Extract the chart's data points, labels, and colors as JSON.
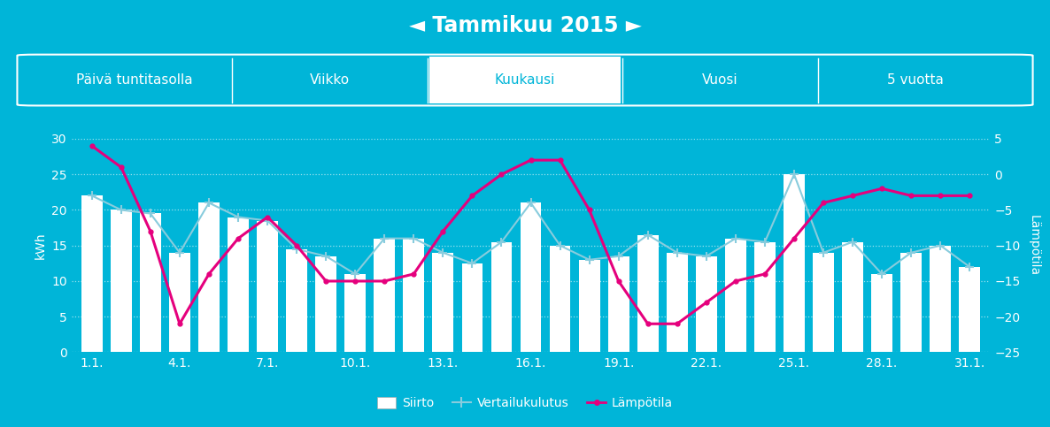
{
  "title": "◄ Tammikuu 2015 ►",
  "background_color": "#00B5D8",
  "bar_color": "white",
  "tabs": [
    "Päivä tuntitasolla",
    "Viikko",
    "Kuukausi",
    "Vuosi",
    "5 vuotta"
  ],
  "active_tab": "Kuukausi",
  "x_labels": [
    "1.1.",
    "4.1.",
    "7.1.",
    "10.1.",
    "13.1.",
    "16.1.",
    "19.1.",
    "22.1.",
    "25.1.",
    "28.1.",
    "31.1."
  ],
  "days": [
    1,
    2,
    3,
    4,
    5,
    6,
    7,
    8,
    9,
    10,
    11,
    12,
    13,
    14,
    15,
    16,
    17,
    18,
    19,
    20,
    21,
    22,
    23,
    24,
    25,
    26,
    27,
    28,
    29,
    30,
    31
  ],
  "bar_values": [
    22,
    20,
    19.5,
    14,
    21,
    19,
    18.5,
    14.5,
    13.5,
    11,
    16,
    16,
    14,
    12.5,
    15.5,
    21,
    15,
    13,
    13.5,
    16.5,
    14,
    13.5,
    16,
    15.5,
    25,
    14,
    15.5,
    11,
    14,
    15,
    12
  ],
  "vertailukulutus": [
    22,
    20,
    19.5,
    14,
    21,
    19,
    18.5,
    14.5,
    13.5,
    11,
    16,
    16,
    14,
    12.5,
    15.5,
    21,
    15,
    13,
    13.5,
    16.5,
    14,
    13.5,
    16,
    15.5,
    25,
    14,
    15.5,
    11,
    14,
    15,
    12
  ],
  "lampotila": [
    4,
    1,
    -8,
    -21,
    -14,
    -9,
    -6,
    -10,
    -15,
    -15,
    -15,
    -14,
    -8,
    -3,
    0,
    2,
    2,
    -5,
    -15,
    -21,
    -21,
    -18,
    -15,
    -14,
    -9,
    -4,
    -3,
    -2,
    -3,
    -3,
    -3
  ],
  "ylim_left": [
    0,
    30
  ],
  "ylim_right": [
    -25,
    5
  ],
  "yticks_left": [
    0,
    5,
    10,
    15,
    20,
    25,
    30
  ],
  "yticks_right": [
    -25,
    -20,
    -15,
    -10,
    -5,
    0,
    5
  ],
  "ylabel_right": "Lämpötila",
  "ylabel_left": "kWh",
  "grid_color": "white",
  "line_vertailu_color": "#88CCDD",
  "line_lampotila_color": "#E5007D",
  "legend_siirto": "Siirto",
  "legend_vertailu": "Vertailukulutus",
  "legend_lampotila": "Lämpötila",
  "title_fontsize": 17,
  "tab_fontsize": 11
}
